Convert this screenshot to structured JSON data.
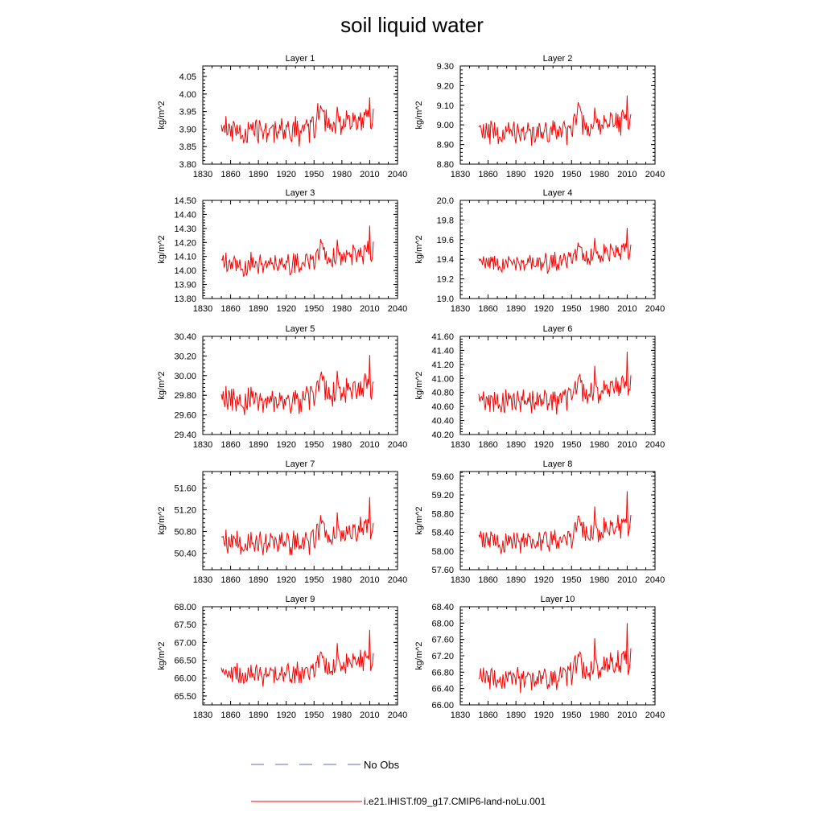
{
  "figure_title": "soil liquid water",
  "legend": {
    "obs_label": "No Obs",
    "model_label": "i.e21.IHIST.f09_g17.CMIP6-land-noLu.001"
  },
  "colors": {
    "model_line": "#ff0000",
    "obs_line": "#6666cc",
    "axes": "#000000"
  },
  "chart_data": [
    {
      "type": "line",
      "title": "Layer 1",
      "ylabel": "kg/m^2",
      "xlim": [
        1830,
        2040
      ],
      "xticks": [
        1830,
        1860,
        1890,
        1920,
        1950,
        1980,
        2010,
        2040
      ],
      "ylim": [
        3.8,
        4.08
      ],
      "yticks": [
        "3.80",
        "3.85",
        "3.90",
        "3.95",
        "4.00",
        "4.05"
      ],
      "base": 3.895,
      "amp": 0.05,
      "trend": 0.035,
      "dec_y": 0.055,
      "last_y": 0.06,
      "grid": false,
      "series": []
    },
    {
      "type": "line",
      "title": "Layer 2",
      "ylabel": "kg/m^2",
      "xlim": [
        1830,
        2040
      ],
      "xticks": [
        1830,
        1860,
        1890,
        1920,
        1950,
        1980,
        2010,
        2040
      ],
      "ylim": [
        8.8,
        9.3
      ],
      "yticks": [
        "8.80",
        "8.90",
        "9.00",
        "9.10",
        "9.20",
        "9.30"
      ],
      "base": 8.96,
      "amp": 0.08,
      "trend": 0.07,
      "dec_y": 0.1,
      "last_y": 0.12,
      "grid": false,
      "series": []
    },
    {
      "type": "line",
      "title": "Layer 3",
      "ylabel": "kg/m^2",
      "xlim": [
        1830,
        2040
      ],
      "xticks": [
        1830,
        1860,
        1890,
        1920,
        1950,
        1980,
        2010,
        2040
      ],
      "ylim": [
        13.8,
        14.5
      ],
      "yticks": [
        "13.80",
        "13.90",
        "14.00",
        "14.10",
        "14.20",
        "14.30",
        "14.40",
        "14.50"
      ],
      "base": 14.04,
      "amp": 0.1,
      "trend": 0.1,
      "dec_y": 0.14,
      "last_y": 0.18,
      "grid": false,
      "series": []
    },
    {
      "type": "line",
      "title": "Layer 4",
      "ylabel": "kg/m^2",
      "xlim": [
        1830,
        2040
      ],
      "xticks": [
        1830,
        1860,
        1890,
        1920,
        1950,
        1980,
        2010,
        2040
      ],
      "ylim": [
        19.0,
        20.0
      ],
      "yticks": [
        "19.0",
        "19.2",
        "19.4",
        "19.6",
        "19.8",
        "20.0"
      ],
      "base": 19.36,
      "amp": 0.12,
      "trend": 0.14,
      "dec_y": 0.2,
      "last_y": 0.22,
      "grid": false,
      "series": []
    },
    {
      "type": "line",
      "title": "Layer 5",
      "ylabel": "kg/m^2",
      "xlim": [
        1830,
        2040
      ],
      "xticks": [
        1830,
        1860,
        1890,
        1920,
        1950,
        1980,
        2010,
        2040
      ],
      "ylim": [
        29.4,
        30.4
      ],
      "yticks": [
        "29.40",
        "29.60",
        "29.80",
        "30.00",
        "30.20",
        "30.40"
      ],
      "base": 29.74,
      "amp": 0.17,
      "trend": 0.17,
      "dec_y": 0.24,
      "last_y": 0.3,
      "grid": false,
      "series": []
    },
    {
      "type": "line",
      "title": "Layer 6",
      "ylabel": "kg/m^2",
      "xlim": [
        1830,
        2040
      ],
      "xticks": [
        1830,
        1860,
        1890,
        1920,
        1950,
        1980,
        2010,
        2040
      ],
      "ylim": [
        40.2,
        41.6
      ],
      "yticks": [
        "40.20",
        "40.40",
        "40.60",
        "40.80",
        "41.00",
        "41.20",
        "41.40",
        "41.60"
      ],
      "base": 40.68,
      "amp": 0.22,
      "trend": 0.25,
      "dec_y": 0.4,
      "last_y": 0.45,
      "grid": false,
      "series": []
    },
    {
      "type": "line",
      "title": "Layer 7",
      "ylabel": "kg/m^2",
      "xlim": [
        1830,
        2040
      ],
      "xticks": [
        1830,
        1860,
        1890,
        1920,
        1950,
        1980,
        2010,
        2040
      ],
      "ylim": [
        50.1,
        51.9
      ],
      "yticks": [
        "50.40",
        "50.80",
        "51.20",
        "51.60"
      ],
      "base": 50.58,
      "amp": 0.27,
      "trend": 0.3,
      "dec_y": 0.45,
      "last_y": 0.55,
      "grid": false,
      "series": []
    },
    {
      "type": "line",
      "title": "Layer 8",
      "ylabel": "kg/m^2",
      "xlim": [
        1830,
        2040
      ],
      "xticks": [
        1830,
        1860,
        1890,
        1920,
        1950,
        1980,
        2010,
        2040
      ],
      "ylim": [
        57.6,
        59.7
      ],
      "yticks": [
        "57.60",
        "58.00",
        "58.40",
        "58.80",
        "59.20",
        "59.60"
      ],
      "base": 58.2,
      "amp": 0.3,
      "trend": 0.38,
      "dec_y": 0.6,
      "last_y": 0.7,
      "grid": false,
      "series": []
    },
    {
      "type": "line",
      "title": "Layer 9",
      "ylabel": "kg/m^2",
      "xlim": [
        1830,
        2040
      ],
      "xticks": [
        1830,
        1860,
        1890,
        1920,
        1950,
        1980,
        2010,
        2040
      ],
      "ylim": [
        65.25,
        68.0
      ],
      "yticks": [
        "65.50",
        "66.00",
        "66.50",
        "67.00",
        "67.50",
        "68.00"
      ],
      "base": 66.1,
      "amp": 0.38,
      "trend": 0.45,
      "dec_y": 0.7,
      "last_y": 0.8,
      "grid": false,
      "series": []
    },
    {
      "type": "line",
      "title": "Layer 10",
      "ylabel": "kg/m^2",
      "xlim": [
        1830,
        2040
      ],
      "xticks": [
        1830,
        1860,
        1890,
        1920,
        1950,
        1980,
        2010,
        2040
      ],
      "ylim": [
        66.0,
        68.4
      ],
      "yticks": [
        "66.00",
        "66.40",
        "66.80",
        "67.20",
        "67.60",
        "68.00",
        "68.40"
      ],
      "base": 66.65,
      "amp": 0.38,
      "trend": 0.45,
      "dec_y": 0.8,
      "last_y": 0.9,
      "grid": false,
      "series": []
    }
  ]
}
